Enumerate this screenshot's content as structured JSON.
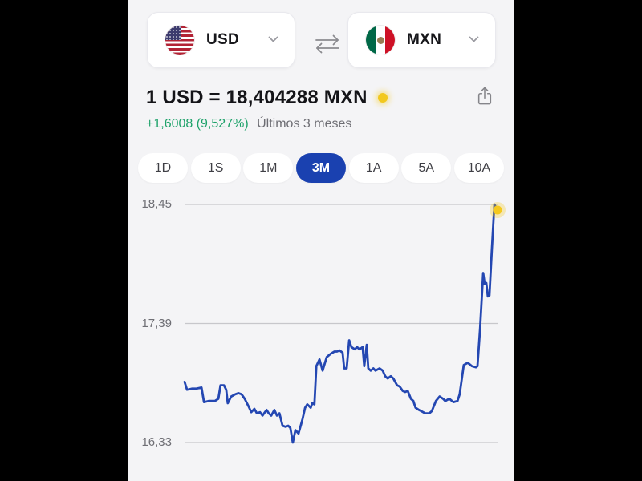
{
  "page": {
    "background": "#000000",
    "content_background": "#f4f4f6"
  },
  "converter": {
    "from": {
      "code": "USD",
      "flag_icon": "us-flag"
    },
    "to": {
      "code": "MXN",
      "flag_icon": "mexico-flag"
    },
    "icons": {
      "swap": "swap-horizontal-arrows",
      "chevron": "chevron-down",
      "share": "share-box-arrow-up",
      "live": "yellow-dot"
    }
  },
  "rate": {
    "headline": "1 USD = 18,404288 MXN",
    "change_value": "+1,6008 (9,527%)",
    "change_period": "Últimos 3 meses",
    "change_color": "#1ea26a"
  },
  "ranges": {
    "selected_index": 3,
    "options": [
      {
        "label": "1D",
        "selected": false
      },
      {
        "label": "1S",
        "selected": false
      },
      {
        "label": "1M",
        "selected": false
      },
      {
        "label": "3M",
        "selected": true
      },
      {
        "label": "1A",
        "selected": false
      },
      {
        "label": "5A",
        "selected": false
      },
      {
        "label": "10A",
        "selected": false
      }
    ]
  },
  "chart_data": {
    "type": "line",
    "title": "",
    "xlabel": "",
    "ylabel": "",
    "ylim": [
      16.33,
      18.45
    ],
    "yticks": [
      18.45,
      17.39,
      16.33
    ],
    "ytick_labels": [
      "18,45",
      "17,39",
      "16,33"
    ],
    "grid": "horizontal-only",
    "legend": "none",
    "line_color": "#2447b2",
    "grid_color": "#c7c7cb",
    "endpoint_marker_color": "#f5c91e",
    "last_value": 18.404288,
    "series": [
      {
        "name": "USD/MXN",
        "points": [
          [
            0,
            16.87
          ],
          [
            0.8,
            16.8
          ],
          [
            2.3,
            16.81
          ],
          [
            3.8,
            16.81
          ],
          [
            5.4,
            16.82
          ],
          [
            6.2,
            16.69
          ],
          [
            7.7,
            16.7
          ],
          [
            9.7,
            16.7
          ],
          [
            10.8,
            16.72
          ],
          [
            11.5,
            16.84
          ],
          [
            12.6,
            16.84
          ],
          [
            13.3,
            16.8
          ],
          [
            13.8,
            16.68
          ],
          [
            14.9,
            16.74
          ],
          [
            16.2,
            16.76
          ],
          [
            17.2,
            16.77
          ],
          [
            18.2,
            16.76
          ],
          [
            19.2,
            16.72
          ],
          [
            20.5,
            16.65
          ],
          [
            21.3,
            16.6
          ],
          [
            22.3,
            16.63
          ],
          [
            23.1,
            16.59
          ],
          [
            24.1,
            16.6
          ],
          [
            24.9,
            16.57
          ],
          [
            25.4,
            16.59
          ],
          [
            26.2,
            16.62
          ],
          [
            26.9,
            16.59
          ],
          [
            27.7,
            16.57
          ],
          [
            28.7,
            16.62
          ],
          [
            29.5,
            16.57
          ],
          [
            30.3,
            16.59
          ],
          [
            31.3,
            16.48
          ],
          [
            32.3,
            16.47
          ],
          [
            33.1,
            16.48
          ],
          [
            33.8,
            16.46
          ],
          [
            34.6,
            16.33
          ],
          [
            35.4,
            16.44
          ],
          [
            36.4,
            16.41
          ],
          [
            37.2,
            16.49
          ],
          [
            37.7,
            16.54
          ],
          [
            38.5,
            16.64
          ],
          [
            39.2,
            16.67
          ],
          [
            40.3,
            16.64
          ],
          [
            40.8,
            16.68
          ],
          [
            41.5,
            16.67
          ],
          [
            42.1,
            17.01
          ],
          [
            43.1,
            17.07
          ],
          [
            44.1,
            16.97
          ],
          [
            45.4,
            17.09
          ],
          [
            46.7,
            17.12
          ],
          [
            47.9,
            17.14
          ],
          [
            48.7,
            17.14
          ],
          [
            49.5,
            17.15
          ],
          [
            50.5,
            17.13
          ],
          [
            51.0,
            16.99
          ],
          [
            51.8,
            16.99
          ],
          [
            52.6,
            17.24
          ],
          [
            53.3,
            17.18
          ],
          [
            54.4,
            17.16
          ],
          [
            55.1,
            17.18
          ],
          [
            55.9,
            17.16
          ],
          [
            56.9,
            17.18
          ],
          [
            57.4,
            17.01
          ],
          [
            58.2,
            17.2
          ],
          [
            58.7,
            16.99
          ],
          [
            59.5,
            16.97
          ],
          [
            60.3,
            16.99
          ],
          [
            61.0,
            16.97
          ],
          [
            62.3,
            16.99
          ],
          [
            63.3,
            16.97
          ],
          [
            64.1,
            16.92
          ],
          [
            64.9,
            16.9
          ],
          [
            65.9,
            16.92
          ],
          [
            66.7,
            16.9
          ],
          [
            67.9,
            16.84
          ],
          [
            68.7,
            16.83
          ],
          [
            69.7,
            16.79
          ],
          [
            70.5,
            16.78
          ],
          [
            71.3,
            16.79
          ],
          [
            72.3,
            16.72
          ],
          [
            73.1,
            16.7
          ],
          [
            73.8,
            16.64
          ],
          [
            74.9,
            16.62
          ],
          [
            75.6,
            16.61
          ],
          [
            76.9,
            16.59
          ],
          [
            78.2,
            16.59
          ],
          [
            79.0,
            16.61
          ],
          [
            80.3,
            16.7
          ],
          [
            81.5,
            16.74
          ],
          [
            82.6,
            16.72
          ],
          [
            83.3,
            16.7
          ],
          [
            84.6,
            16.72
          ],
          [
            85.9,
            16.69
          ],
          [
            87.2,
            16.7
          ],
          [
            87.9,
            16.76
          ],
          [
            89.2,
            17.02
          ],
          [
            90.5,
            17.04
          ],
          [
            91.8,
            17.01
          ],
          [
            93.1,
            17.0
          ],
          [
            93.6,
            17.01
          ],
          [
            94.4,
            17.34
          ],
          [
            95.4,
            17.84
          ],
          [
            95.9,
            17.74
          ],
          [
            96.4,
            17.75
          ],
          [
            96.9,
            17.63
          ],
          [
            97.4,
            17.64
          ],
          [
            98.2,
            18.06
          ],
          [
            99.0,
            18.45
          ],
          [
            100,
            18.4
          ]
        ]
      }
    ]
  }
}
